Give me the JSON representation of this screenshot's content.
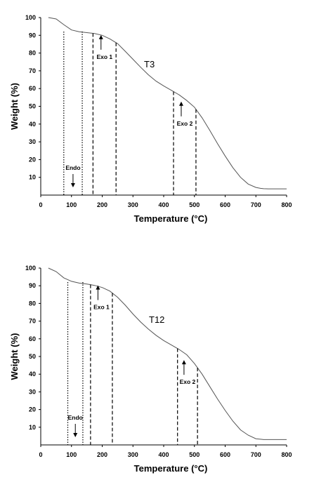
{
  "chart_data": [
    {
      "type": "line",
      "title": "T3",
      "xlabel": "Temperature (°C)",
      "ylabel": "Weight (%)",
      "xlim": [
        0,
        800
      ],
      "ylim": [
        0,
        100
      ],
      "x_ticks": [
        "0",
        "100",
        "200",
        "300",
        "400",
        "500",
        "600",
        "700",
        "800"
      ],
      "y_ticks": [
        "10",
        "20",
        "30",
        "40",
        "50",
        "60",
        "70",
        "80",
        "90",
        "100"
      ],
      "grid": false,
      "series": [
        {
          "x": [
            25,
            50,
            75,
            100,
            125,
            150,
            175,
            200,
            225,
            250,
            275,
            300,
            325,
            350,
            375,
            400,
            425,
            450,
            475,
            500,
            525,
            550,
            575,
            600,
            625,
            650,
            675,
            700,
            715,
            725,
            740,
            760,
            780,
            800
          ],
          "y": [
            100,
            99.2,
            96,
            93,
            92,
            91.5,
            91,
            90,
            88,
            85.3,
            81,
            76.5,
            72,
            67.8,
            64.2,
            61.5,
            59,
            56.5,
            53.3,
            49.5,
            43.5,
            36.5,
            29,
            22,
            15.5,
            10,
            6.2,
            4.3,
            3.8,
            3.6,
            3.5,
            3.5,
            3.5,
            3.5
          ]
        }
      ],
      "regions": [
        {
          "label": "Endo",
          "x_start": 75,
          "x_end": 135,
          "line_style": "dotted",
          "arrow": "down"
        },
        {
          "label": "Exo 1",
          "x_start": 170,
          "x_end": 245,
          "line_style": "dashed",
          "arrow": "up"
        },
        {
          "label": "Exo 2",
          "x_start": 432,
          "x_end": 505,
          "line_style": "dashed",
          "arrow": "up"
        }
      ]
    },
    {
      "type": "line",
      "title": "T12",
      "xlabel": "Temperature (°C)",
      "ylabel": "Weight (%)",
      "xlim": [
        0,
        800
      ],
      "ylim": [
        0,
        100
      ],
      "x_ticks": [
        "0",
        "100",
        "200",
        "300",
        "400",
        "500",
        "600",
        "700",
        "800"
      ],
      "y_ticks": [
        "10",
        "20",
        "30",
        "40",
        "50",
        "60",
        "70",
        "80",
        "90",
        "100"
      ],
      "grid": false,
      "series": [
        {
          "x": [
            25,
            50,
            75,
            100,
            125,
            150,
            175,
            200,
            225,
            250,
            275,
            300,
            325,
            350,
            375,
            400,
            425,
            450,
            475,
            500,
            525,
            550,
            575,
            600,
            625,
            650,
            675,
            700,
            715,
            725,
            740,
            760,
            780,
            800
          ],
          "y": [
            100,
            98,
            94.5,
            92.5,
            91.5,
            91,
            90.2,
            89,
            87,
            83.5,
            79,
            74,
            69.5,
            65.5,
            62,
            59,
            56.5,
            54,
            51,
            46,
            40,
            33,
            26,
            19.5,
            13.5,
            8.5,
            5.5,
            3.5,
            3.2,
            3,
            3,
            3,
            3,
            3
          ]
        }
      ],
      "regions": [
        {
          "label": "Endo",
          "x_start": 88,
          "x_end": 137,
          "line_style": "dotted",
          "arrow": "down"
        },
        {
          "label": "Exo 1",
          "x_start": 162,
          "x_end": 233,
          "line_style": "dashed",
          "arrow": "up"
        },
        {
          "label": "Exo 2",
          "x_start": 445,
          "x_end": 510,
          "line_style": "dashed",
          "arrow": "up"
        }
      ]
    }
  ]
}
